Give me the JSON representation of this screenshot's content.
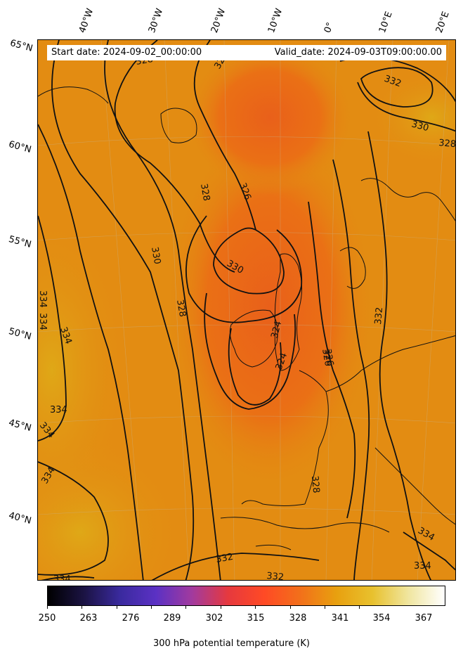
{
  "header": {
    "start_date": "Start date: 2024-09-02_00:00:00",
    "valid_date": "Valid_date: 2024-09-03T09:00:00.00"
  },
  "longitude_labels": [
    "40°W",
    "30°W",
    "20°W",
    "10°W",
    "0°",
    "10°E",
    "20°E"
  ],
  "latitude_labels": [
    "65°N",
    "60°N",
    "55°N",
    "50°N",
    "45°N",
    "40°N"
  ],
  "contour_labels": [
    "326",
    "328",
    "326",
    "330",
    "328",
    "328",
    "330",
    "326",
    "324",
    "324",
    "326",
    "328",
    "332",
    "334",
    "334",
    "334",
    "334",
    "332",
    "332",
    "334",
    "334",
    "334",
    "332",
    "330",
    "328",
    "334",
    "334"
  ],
  "colorbar": {
    "ticks": [
      "250",
      "263",
      "276",
      "289",
      "302",
      "315",
      "328",
      "341",
      "354",
      "367"
    ],
    "label": "300 hPa potential temperature (K)",
    "stops": [
      "#000000",
      "#1b1343",
      "#3a2a9e",
      "#5b31c4",
      "#a23a9e",
      "#e6393e",
      "#ff4a25",
      "#f2701a",
      "#e8a00f",
      "#e8c12e",
      "#f0e6a0",
      "#ffffff"
    ]
  },
  "map_colors": {
    "base": "#e38c12",
    "core": "#ea6a15",
    "warm": "#e1a012"
  }
}
